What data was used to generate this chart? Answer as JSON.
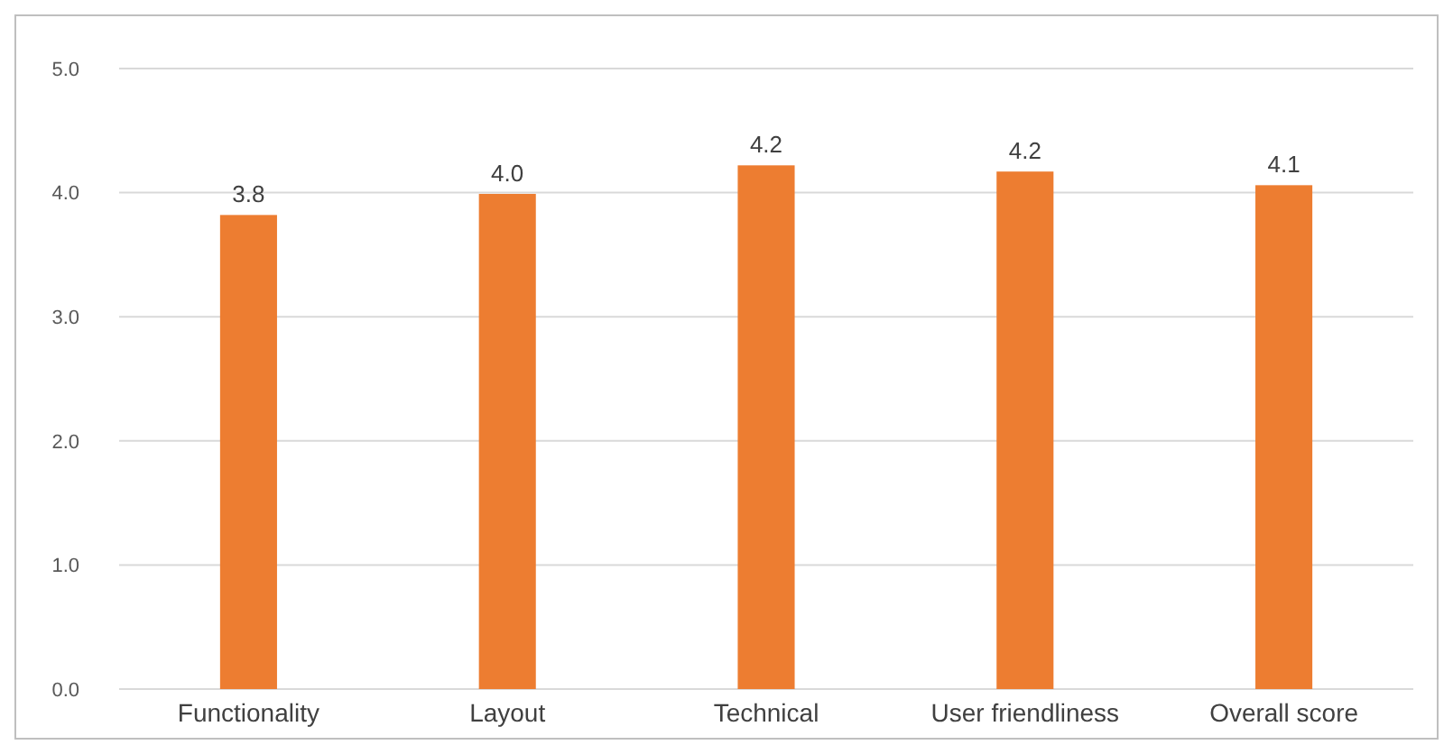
{
  "chart_data": {
    "type": "bar",
    "categories": [
      "Functionality",
      "Layout",
      "Technical",
      "User friendliness",
      "Overall score"
    ],
    "values": [
      3.82,
      3.99,
      4.22,
      4.17,
      4.06
    ],
    "value_labels": [
      "3.8",
      "4.0",
      "4.2",
      "4.2",
      "4.1"
    ],
    "color": "#ed7d31",
    "ylim": [
      0,
      5
    ],
    "yticks": [
      {
        "value": 0,
        "label": "0.0"
      },
      {
        "value": 1,
        "label": "1.0"
      },
      {
        "value": 2,
        "label": "2.0"
      },
      {
        "value": 3,
        "label": "3.0"
      },
      {
        "value": 4,
        "label": "4.0"
      },
      {
        "value": 5,
        "label": "5.0"
      }
    ],
    "grid": "y"
  }
}
